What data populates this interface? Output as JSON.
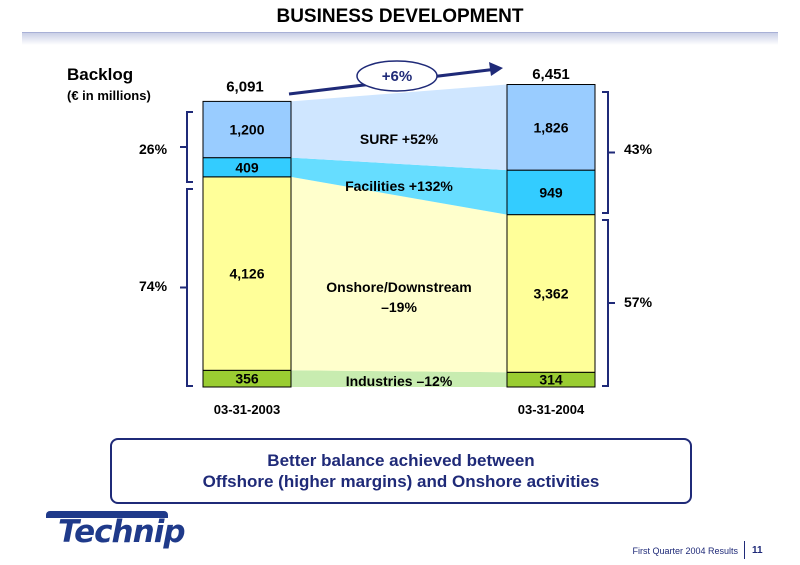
{
  "title": "BUSINESS DEVELOPMENT",
  "chart_data": {
    "type": "bar",
    "stacked": true,
    "title": "Backlog",
    "subtitle": "(€ in millions)",
    "categories": [
      "03-31-2003",
      "03-31-2004"
    ],
    "totals": [
      6091,
      6451
    ],
    "total_labels": [
      "6,091",
      "6,451"
    ],
    "growth_label": "+6%",
    "series": [
      {
        "name": "Industries",
        "values": [
          356,
          314
        ],
        "value_labels": [
          "356",
          "314"
        ],
        "change_label": "Industries –12%",
        "color": "#9acd32"
      },
      {
        "name": "Onshore/Downstream",
        "values": [
          4126,
          3362
        ],
        "value_labels": [
          "4,126",
          "3,362"
        ],
        "change_label_lines": [
          "Onshore/Downstream",
          "–19%"
        ],
        "color": "#ffff99"
      },
      {
        "name": "Facilities",
        "values": [
          409,
          949
        ],
        "value_labels": [
          "409",
          "949"
        ],
        "change_label": "Facilities +132%",
        "color": "#33ccff"
      },
      {
        "name": "SURF",
        "values": [
          1200,
          1826
        ],
        "value_labels": [
          "1,200",
          "1,826"
        ],
        "change_label": "SURF +52%",
        "color": "#99ccff"
      }
    ],
    "share_labels": {
      "left_offshore": "26%",
      "left_onshore": "74%",
      "right_offshore": "43%",
      "right_onshore": "57%"
    }
  },
  "conclusion_lines": [
    "Better balance achieved between",
    "Offshore (higher margins) and Onshore activities"
  ],
  "logo_text": "Technip",
  "footer_text": "First Quarter 2004 Results",
  "page_number": "11"
}
